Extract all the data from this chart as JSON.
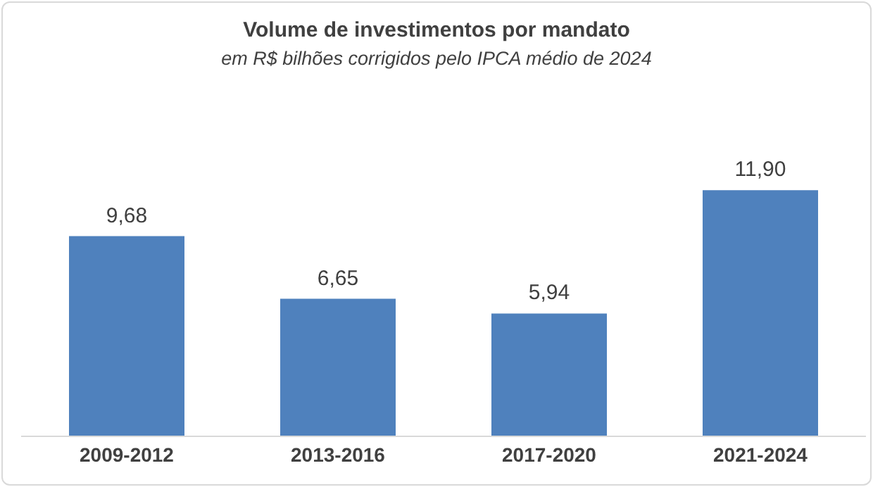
{
  "chart_data": {
    "type": "bar",
    "title": "Volume de investimentos por mandato",
    "subtitle": "em R$ bilhões corrigidos pelo IPCA médio de 2024",
    "categories": [
      "2009-2012",
      "2013-2016",
      "2017-2020",
      "2021-2024"
    ],
    "values": [
      9.68,
      6.65,
      5.94,
      11.9
    ],
    "value_labels": [
      "9,68",
      "6,65",
      "5,94",
      "11,90"
    ],
    "color": "#4f81bd"
  }
}
